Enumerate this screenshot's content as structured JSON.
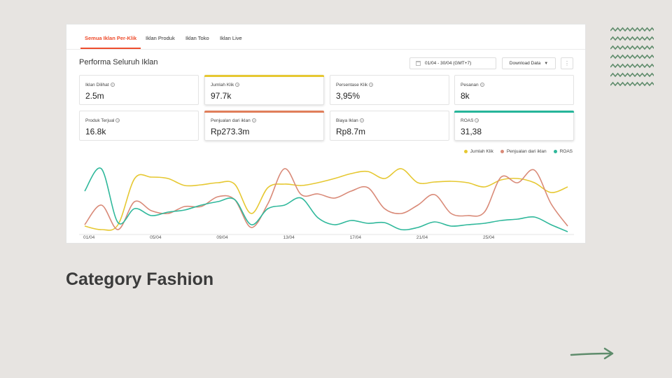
{
  "tabs": [
    {
      "label": "Semua Iklan Per-Klik",
      "active": true
    },
    {
      "label": "Iklan Produk",
      "active": false
    },
    {
      "label": "Iklan Toko",
      "active": false
    },
    {
      "label": "Iklan Live",
      "active": false
    }
  ],
  "header": {
    "title": "Performa Seluruh Iklan",
    "date_range": "01/04 - 30/04 (GMT+7)",
    "download_label": "Download Data"
  },
  "metrics": [
    {
      "label": "Iklan Dilihat",
      "value": "2.5m"
    },
    {
      "label": "Jumlah Klik",
      "value": "97.7k",
      "selected": true,
      "color": "#e6c832"
    },
    {
      "label": "Persentase Klik",
      "value": "3,95%"
    },
    {
      "label": "Pesanan",
      "value": "8k"
    },
    {
      "label": "Produk Terjual",
      "value": "16.8k"
    },
    {
      "label": "Penjualan dari iklan",
      "value": "Rp273.3m",
      "selected": true,
      "color": "#e07e5a"
    },
    {
      "label": "Biaya Iklan",
      "value": "Rp8.7m"
    },
    {
      "label": "ROAS",
      "value": "31,38",
      "selected": true,
      "color": "#26b59a"
    }
  ],
  "legend": [
    {
      "name": "Jumlah Klik",
      "color": "#e6c832"
    },
    {
      "name": "Penjualan dari iklan",
      "color": "#d98a78"
    },
    {
      "name": "ROAS",
      "color": "#2fb89b"
    }
  ],
  "chart_data": {
    "type": "line",
    "x": [
      "01/04",
      "02/04",
      "03/04",
      "04/04",
      "05/04",
      "06/04",
      "07/04",
      "08/04",
      "09/04",
      "10/04",
      "11/04",
      "12/04",
      "13/04",
      "14/04",
      "15/04",
      "16/04",
      "17/04",
      "18/04",
      "19/04",
      "20/04",
      "21/04",
      "22/04",
      "23/04",
      "24/04",
      "25/04",
      "26/04",
      "27/04",
      "28/04",
      "29/04",
      "30/04"
    ],
    "x_tick_labels": [
      "01/04",
      "05/04",
      "09/04",
      "13/04",
      "17/04",
      "21/04",
      "25/04"
    ],
    "series": [
      {
        "name": "Jumlah Klik",
        "color": "#e6c832",
        "values": [
          10,
          5,
          12,
          78,
          80,
          78,
          68,
          69,
          72,
          70,
          28,
          65,
          70,
          68,
          72,
          78,
          85,
          88,
          78,
          92,
          72,
          73,
          74,
          72,
          66,
          76,
          78,
          72,
          58,
          66
        ]
      },
      {
        "name": "Penjualan dari iklan",
        "color": "#d98a78",
        "values": [
          12,
          40,
          5,
          45,
          32,
          28,
          38,
          38,
          52,
          48,
          8,
          42,
          92,
          55,
          56,
          50,
          60,
          65,
          35,
          28,
          40,
          55,
          28,
          25,
          30,
          80,
          72,
          90,
          42,
          10
        ]
      },
      {
        "name": "ROAS",
        "color": "#2fb89b",
        "values": [
          60,
          92,
          15,
          35,
          25,
          30,
          33,
          40,
          45,
          48,
          12,
          35,
          40,
          50,
          22,
          12,
          18,
          14,
          15,
          5,
          8,
          16,
          10,
          12,
          14,
          18,
          20,
          23,
          12,
          2
        ]
      }
    ]
  },
  "caption": "Category Fashion",
  "icons": {
    "calendar": "calendar-icon",
    "chevron": "chevron-down-icon",
    "menu": "menu-icon",
    "arrow": "arrow-right-icon"
  },
  "colors": {
    "accent": "#ee4d2d",
    "deco": "#5f8c6c"
  }
}
